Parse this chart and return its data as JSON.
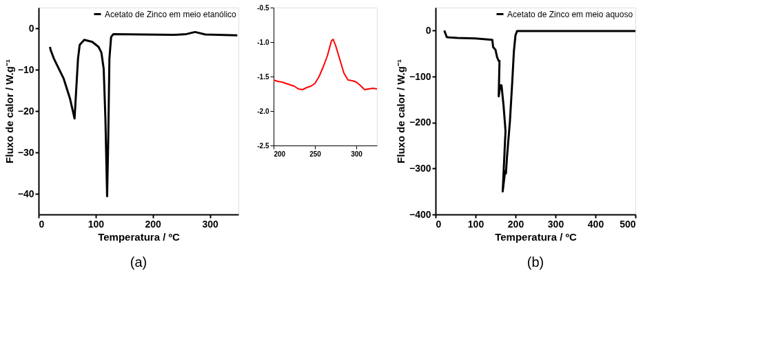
{
  "chart_data": [
    {
      "type": "line",
      "xlabel": "Temperatura / ºC",
      "ylabel": "Fluxo de calor / W.g⁻¹",
      "xlim": [
        0,
        350
      ],
      "ylim": [
        -45,
        5
      ],
      "xticks": [
        0,
        100,
        200,
        300
      ],
      "yticks": [
        -40,
        -30,
        -20,
        -10,
        0
      ],
      "grid": false,
      "legend": "top right",
      "marker": "none",
      "line_style": "solid",
      "annotations": [
        "(a)"
      ],
      "series": [
        {
          "name": "Acetato de Zinco em meio etanólico",
          "color": "#000000",
          "x": [
            20,
            21,
            27,
            44,
            55,
            63,
            65,
            69,
            72,
            80,
            94,
            105,
            110,
            114,
            117,
            120,
            122,
            124,
            127,
            131,
            182,
            237,
            259,
            274,
            292,
            348
          ],
          "values": [
            -4.5,
            -5.2,
            -7.4,
            -12.2,
            -17,
            -21.8,
            -17,
            -7.4,
            -4,
            -2.8,
            -3.3,
            -4.5,
            -5.9,
            -9.8,
            -21.8,
            -40.6,
            -26.7,
            -7.4,
            -2.1,
            -1.4,
            -1.5,
            -1.6,
            -1.4,
            -0.9,
            -1.5,
            -1.7
          ]
        }
      ]
    },
    {
      "type": "line",
      "xlim": [
        200,
        325
      ],
      "ylim": [
        -2.5,
        -0.5
      ],
      "xticks": [
        200,
        250,
        300
      ],
      "yticks": [
        {
          "value": -2.5,
          "label": "-2.5"
        },
        {
          "value": -2,
          "label": "-2.0"
        },
        {
          "value": -1.5,
          "label": "-1.5"
        },
        {
          "value": -1,
          "label": "-1.0"
        },
        {
          "value": -0.5,
          "label": "-0.5"
        }
      ],
      "grid": false,
      "marker": "none",
      "line_style": "solid",
      "series": [
        {
          "color": "#ff0000",
          "x": [
            200,
            205,
            210,
            215,
            220,
            225,
            230,
            235,
            240,
            245,
            250,
            255,
            260,
            265,
            270,
            272,
            275,
            280,
            285,
            290,
            295,
            300,
            305,
            310,
            315,
            320,
            325
          ],
          "values": [
            -1.55,
            -1.57,
            -1.58,
            -1.6,
            -1.62,
            -1.64,
            -1.68,
            -1.69,
            -1.66,
            -1.64,
            -1.6,
            -1.5,
            -1.36,
            -1.2,
            -0.98,
            -0.96,
            -1.05,
            -1.25,
            -1.45,
            -1.55,
            -1.56,
            -1.58,
            -1.63,
            -1.69,
            -1.68,
            -1.67,
            -1.68
          ]
        }
      ]
    },
    {
      "type": "line",
      "xlabel": "Temperatura / ºC",
      "ylabel": "Fluxo de calor / W.g⁻¹",
      "xlim": [
        0,
        500
      ],
      "ylim": [
        -400,
        50
      ],
      "xticks": [
        0,
        100,
        200,
        300,
        400,
        500
      ],
      "yticks": [
        -400,
        -300,
        -200,
        -100,
        0
      ],
      "grid": false,
      "legend": "top right",
      "marker": "none",
      "line_style": "solid",
      "annotations": [
        "(b)"
      ],
      "series": [
        {
          "name": "Acetato de Zinco em meio aquoso",
          "color": "#000000",
          "x": [
            22,
            28,
            34,
            55,
            100,
            142,
            144,
            150,
            154,
            158,
            160,
            158,
            162,
            165,
            170,
            174,
            175,
            168,
            174,
            176,
            179,
            186,
            192,
            196,
            200,
            204,
            500
          ],
          "values": [
            0,
            -14,
            -15,
            -16,
            -17,
            -20,
            -36,
            -42,
            -58,
            -66,
            -66,
            -143,
            -119,
            -119,
            -162,
            -206,
            -219,
            -350,
            -306,
            -311,
            -272,
            -198,
            -110,
            -45,
            -10,
            -1,
            -1
          ]
        }
      ]
    }
  ]
}
